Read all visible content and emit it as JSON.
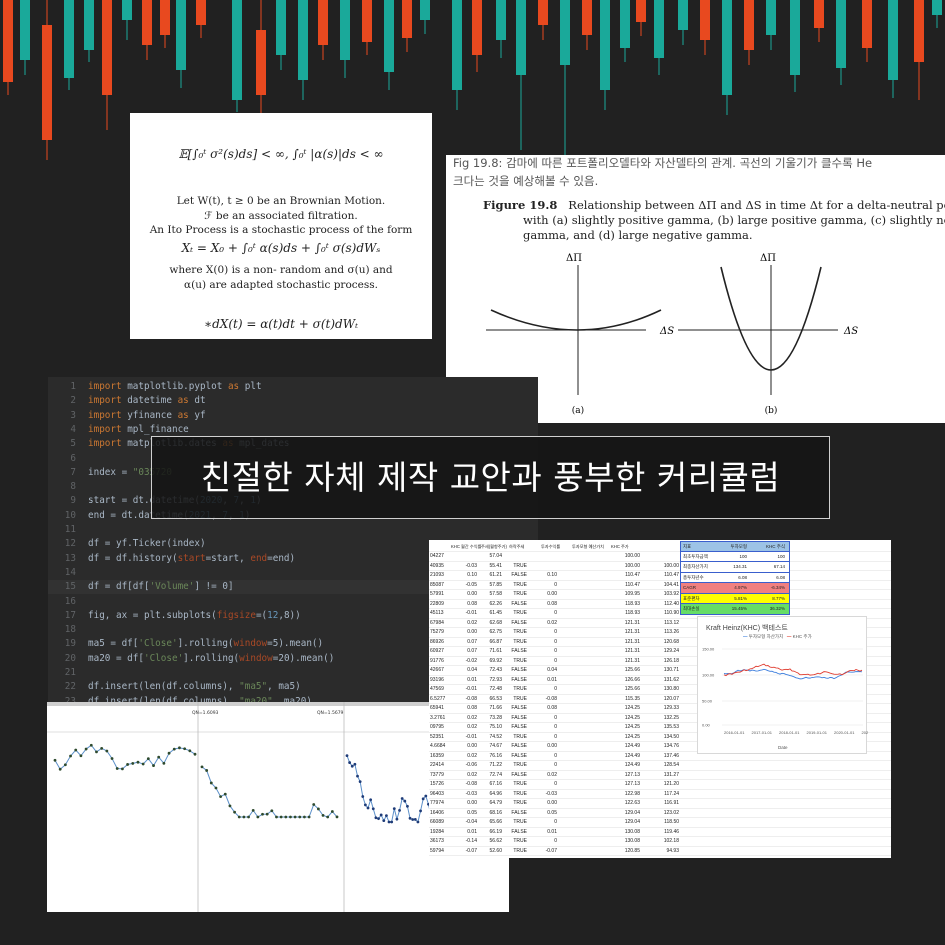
{
  "banner": {
    "title": "친절한 자체 제작 교안과 풍부한 커리큘럼"
  },
  "colors": {
    "background": "#212121",
    "candle_up": "#1aa99a",
    "candle_down": "#e8491f",
    "code_bg": "#2b2b2b",
    "chart_blue": "#3b7ddd",
    "chart_red": "#e03b2e"
  },
  "math_card": {
    "eq_top": "𝔼[∫₀ᵗ σ²(s)ds] < ∞,  ∫₀ᵗ |α(s)|ds < ∞",
    "lines": [
      "Let W(t), t ≥ 0 be an Brownian Motion.",
      "ℱ be an associated filtration.",
      "An Ito Process is a stochastic process of the form",
      "Xₜ = X₀ + ∫₀ᵗ α(s)ds + ∫₀ᵗ σ(s)dWₛ",
      "where X(0) is a non- random and σ(u) and",
      "α(u) are adapted stochastic process."
    ],
    "eq_bottom": "∗dX(t) = α(t)dt + σ(t)dWₜ"
  },
  "figure_card": {
    "korean_line1": "Fig 19.8: 감마에 따른 포트폴리오델타와 자산델타의 관계. 곡선의 기울기가 클수록 He",
    "korean_line2": "크다는 것을 예상해볼 수 있음.",
    "caption_label": "Figure 19.8",
    "caption_lines": [
      "Relationship between ΔΠ and ΔS in time Δt for a delta-neutral port",
      "with (a) slightly positive gamma, (b) large positive gamma, (c) slightly neg",
      "gamma, and (d) large negative gamma."
    ],
    "ylabel": "ΔΠ",
    "xlabel": "ΔS",
    "panel_a": "(a)",
    "panel_b": "(b)"
  },
  "code_card": {
    "lines": [
      {
        "n": "1",
        "code": "import matplotlib.pyplot as plt"
      },
      {
        "n": "2",
        "code": "import datetime as dt"
      },
      {
        "n": "3",
        "code": "import yfinance as yf"
      },
      {
        "n": "4",
        "code": "import mpl_finance"
      },
      {
        "n": "5",
        "code": "import matplotlib.dates as mpl_dates"
      },
      {
        "n": "6",
        "code": ""
      },
      {
        "n": "7",
        "code": "index = \"035720"
      },
      {
        "n": "8",
        "code": ""
      },
      {
        "n": "9",
        "code": "start = dt.datetime(2020, 7, 1)"
      },
      {
        "n": "10",
        "code": "end = dt.datetime(2021, 7, 1)"
      },
      {
        "n": "11",
        "code": ""
      },
      {
        "n": "12",
        "code": "df = yf.Ticker(index)"
      },
      {
        "n": "13",
        "code": "df = df.history(start=start, end=end)"
      },
      {
        "n": "14",
        "code": ""
      },
      {
        "n": "15",
        "code": "df = df[df['Volume'] != 0]"
      },
      {
        "n": "16",
        "code": ""
      },
      {
        "n": "17",
        "code": "fig, ax = plt.subplots(figsize=(12,8))"
      },
      {
        "n": "18",
        "code": ""
      },
      {
        "n": "19",
        "code": "ma5 = df['Close'].rolling(window=5).mean()"
      },
      {
        "n": "20",
        "code": "ma20 = df['Close'].rolling(window=20).mean()"
      },
      {
        "n": "21",
        "code": ""
      },
      {
        "n": "22",
        "code": "df.insert(len(df.columns), \"ma5\", ma5)"
      },
      {
        "n": "23",
        "code": "df.insert(len(df.columns), \"ma20\", ma20)"
      }
    ]
  },
  "plots_card": {
    "label1": "QN=1.6093",
    "label2": "QN=1.5679"
  },
  "sheet_card": {
    "headers": [
      "KHC 월간 수익률",
      "주세(월항주가)",
      "하락주세",
      "투자수익률",
      "투자모형 예산가치",
      "KHC 주가"
    ],
    "summary": {
      "header": [
        "지표",
        "투자모형",
        "KHC 주식"
      ],
      "rows": [
        [
          "최초투자금액",
          "100",
          "100"
        ],
        [
          "최종자산가치",
          "134.31",
          "67.14"
        ],
        [
          "총투자년수",
          "6.08",
          "6.08"
        ],
        [
          "CAGR",
          "4.97%",
          "-6.34%"
        ],
        [
          "표준편차",
          "5.81%",
          "8.77%"
        ],
        [
          "최대손실",
          "15.45%",
          "36.32%"
        ]
      ]
    },
    "chart": {
      "title": "Kraft Heinz(KHC) 백테스트",
      "legend_a": "투자모형 자산가치",
      "legend_b": "KHC 주가",
      "y_ticks": [
        "150.00",
        "100.00",
        "50.00",
        "0.00"
      ],
      "x_ticks": [
        "2016-01-01",
        "2017-01-01",
        "2018-01-01",
        "2019-01-01",
        "2020-01-01",
        "2021-01-01"
      ],
      "xlabel": "Date"
    },
    "rows": [
      [
        "04227",
        "",
        "57.04",
        "",
        "",
        "100.00",
        ""
      ],
      [
        "40935",
        "-0.03",
        "55.41",
        "TRUE",
        "",
        "100.00",
        "100.00"
      ],
      [
        "21093",
        "0.10",
        "61.21",
        "FALSE",
        "0.10",
        "110.47",
        "110.47"
      ],
      [
        "85087",
        "-0.05",
        "57.85",
        "TRUE",
        "0",
        "110.47",
        "104.41"
      ],
      [
        "57991",
        "0.00",
        "57.58",
        "TRUE",
        "0.00",
        "109.95",
        "103.92"
      ],
      [
        "22809",
        "0.08",
        "62.26",
        "FALSE",
        "0.08",
        "118.93",
        "112.40"
      ],
      [
        "45113",
        "-0.01",
        "61.45",
        "TRUE",
        "0",
        "118.93",
        "110.90"
      ],
      [
        "67984",
        "0.02",
        "62.68",
        "FALSE",
        "0.02",
        "121.31",
        "113.12"
      ],
      [
        "75279",
        "0.00",
        "62.75",
        "TRUE",
        "0",
        "121.31",
        "113.26"
      ],
      [
        "86926",
        "0.07",
        "66.87",
        "TRUE",
        "0",
        "121.31",
        "120.68"
      ],
      [
        "60927",
        "0.07",
        "71.61",
        "FALSE",
        "0",
        "121.31",
        "129.24"
      ],
      [
        "91776",
        "-0.02",
        "69.92",
        "TRUE",
        "0",
        "121.31",
        "126.18"
      ],
      [
        "42667",
        "0.04",
        "72.43",
        "FALSE",
        "0.04",
        "125.66",
        "130.71"
      ],
      [
        "93196",
        "0.01",
        "72.93",
        "FALSE",
        "0.01",
        "126.66",
        "131.62"
      ],
      [
        "47569",
        "-0.01",
        "72.48",
        "TRUE",
        "0",
        "125.66",
        "130.80"
      ],
      [
        "6.5277",
        "-0.08",
        "66.53",
        "TRUE",
        "-0.08",
        "115.35",
        "120.07"
      ],
      [
        "65941",
        "0.08",
        "71.66",
        "FALSE",
        "0.08",
        "124.25",
        "129.33"
      ],
      [
        "3.2761",
        "0.02",
        "73.28",
        "FALSE",
        "0",
        "124.25",
        "132.25"
      ],
      [
        "09795",
        "0.02",
        "75.10",
        "FALSE",
        "0",
        "124.25",
        "135.53"
      ],
      [
        "52351",
        "-0.01",
        "74.52",
        "TRUE",
        "0",
        "124.25",
        "134.50"
      ],
      [
        "4.6684",
        "0.00",
        "74.67",
        "FALSE",
        "0.00",
        "124.49",
        "134.76"
      ],
      [
        "16359",
        "0.02",
        "76.16",
        "FALSE",
        "0",
        "124.49",
        "137.46"
      ],
      [
        "22414",
        "-0.06",
        "71.22",
        "TRUE",
        "0",
        "124.49",
        "128.54"
      ],
      [
        "73779",
        "0.02",
        "72.74",
        "FALSE",
        "0.02",
        "127.13",
        "131.27"
      ],
      [
        "15726",
        "-0.08",
        "67.16",
        "TRUE",
        "0",
        "127.13",
        "121.20"
      ],
      [
        "96403",
        "-0.03",
        "64.96",
        "TRUE",
        "-0.03",
        "122.98",
        "117.24"
      ],
      [
        "77974",
        "0.00",
        "64.79",
        "TRUE",
        "0.00",
        "122.63",
        "116.91"
      ],
      [
        "16406",
        "0.05",
        "68.16",
        "FALSE",
        "0.05",
        "129.04",
        "123.02"
      ],
      [
        "66089",
        "-0.04",
        "65.66",
        "TRUE",
        "0",
        "129.04",
        "118.50"
      ],
      [
        "19284",
        "0.01",
        "66.19",
        "FALSE",
        "0.01",
        "130.08",
        "119.46"
      ],
      [
        "36173",
        "-0.14",
        "56.62",
        "TRUE",
        "0",
        "130.08",
        "102.18"
      ],
      [
        "59794",
        "-0.07",
        "52.60",
        "TRUE",
        "-0.07",
        "120.85",
        "94.93"
      ]
    ]
  }
}
